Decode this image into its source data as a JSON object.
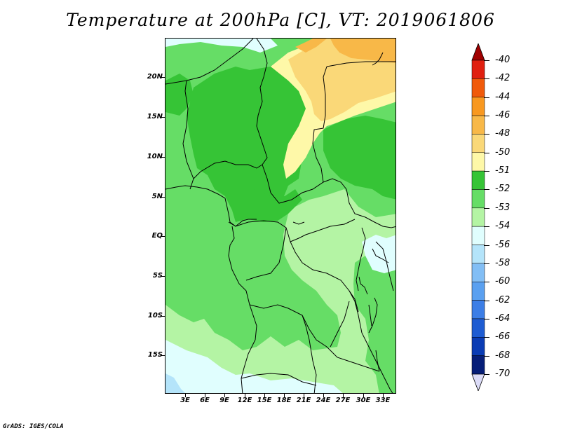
{
  "title": "Temperature at 200hPa [C], VT: 2019061806",
  "footer": "GrADS: IGES/COLA",
  "map": {
    "lat_labels": [
      "20N",
      "15N",
      "10N",
      "5N",
      "EQ",
      "5S",
      "10S",
      "15S"
    ],
    "lon_labels": [
      "3E",
      "6E",
      "9E",
      "12E",
      "15E",
      "18E",
      "21E",
      "24E",
      "27E",
      "30E",
      "33E"
    ]
  },
  "colorbar": {
    "labels": [
      "-40",
      "-42",
      "-44",
      "-46",
      "-48",
      "-50",
      "-51",
      "-52",
      "-53",
      "-54",
      "-56",
      "-58",
      "-60",
      "-62",
      "-64",
      "-66",
      "-68",
      "-70"
    ],
    "colors": [
      "#a00000",
      "#e02010",
      "#f05a0a",
      "#f89820",
      "#f8b848",
      "#fad878",
      "#fef8a8",
      "#36c436",
      "#66dd66",
      "#b4f4a4",
      "#e0fefe",
      "#b4e4fa",
      "#82bef5",
      "#5aa0f0",
      "#3c7ee6",
      "#1e5cd2",
      "#0a3cb4",
      "#061e78",
      "#dcdcf8"
    ]
  }
}
